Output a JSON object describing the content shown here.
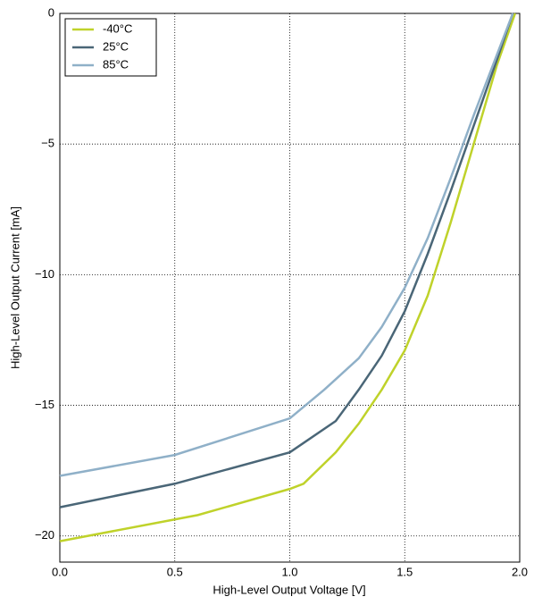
{
  "chart_data": {
    "type": "line",
    "xlabel": "High-Level Output Voltage [V]",
    "ylabel": "High-Level Output Current [mA]",
    "xlim": [
      0,
      2
    ],
    "ylim": [
      -21,
      0
    ],
    "xticks": [
      {
        "value": 0,
        "label": "0.0"
      },
      {
        "value": 0.5,
        "label": "0.5"
      },
      {
        "value": 1,
        "label": "1.0"
      },
      {
        "value": 1.5,
        "label": "1.5"
      },
      {
        "value": 2,
        "label": "2.0"
      }
    ],
    "yticks": [
      {
        "value": 0,
        "label": "0"
      },
      {
        "value": -5,
        "label": "−5"
      },
      {
        "value": -10,
        "label": "−10"
      },
      {
        "value": -15,
        "label": "−15"
      },
      {
        "value": -20,
        "label": "−20"
      }
    ],
    "grid": true,
    "legend": "upper-left",
    "series": [
      {
        "name": "-40°C",
        "color": "#bfd22a",
        "x": [
          0,
          0.6,
          1.0,
          1.06,
          1.2,
          1.3,
          1.4,
          1.5,
          1.6,
          1.7,
          1.8,
          1.9,
          1.98
        ],
        "values": [
          -20.2,
          -19.2,
          -18.2,
          -18.0,
          -16.8,
          -15.7,
          -14.4,
          -12.9,
          -10.8,
          -8.0,
          -5.0,
          -2.0,
          0
        ]
      },
      {
        "name": "25°C",
        "color": "#4a6677",
        "x": [
          0,
          0.5,
          1.0,
          1.2,
          1.3,
          1.4,
          1.5,
          1.6,
          1.7,
          1.8,
          1.9,
          1.97
        ],
        "values": [
          -18.9,
          -18.0,
          -16.8,
          -15.6,
          -14.4,
          -13.1,
          -11.4,
          -9.2,
          -6.8,
          -4.3,
          -1.8,
          0
        ]
      },
      {
        "name": "85°C",
        "color": "#8fb0c8",
        "x": [
          0,
          0.5,
          1.0,
          1.15,
          1.3,
          1.4,
          1.5,
          1.6,
          1.7,
          1.8,
          1.9,
          1.97
        ],
        "values": [
          -17.7,
          -16.9,
          -15.5,
          -14.4,
          -13.2,
          -12.0,
          -10.5,
          -8.6,
          -6.3,
          -3.9,
          -1.6,
          0
        ]
      }
    ]
  }
}
